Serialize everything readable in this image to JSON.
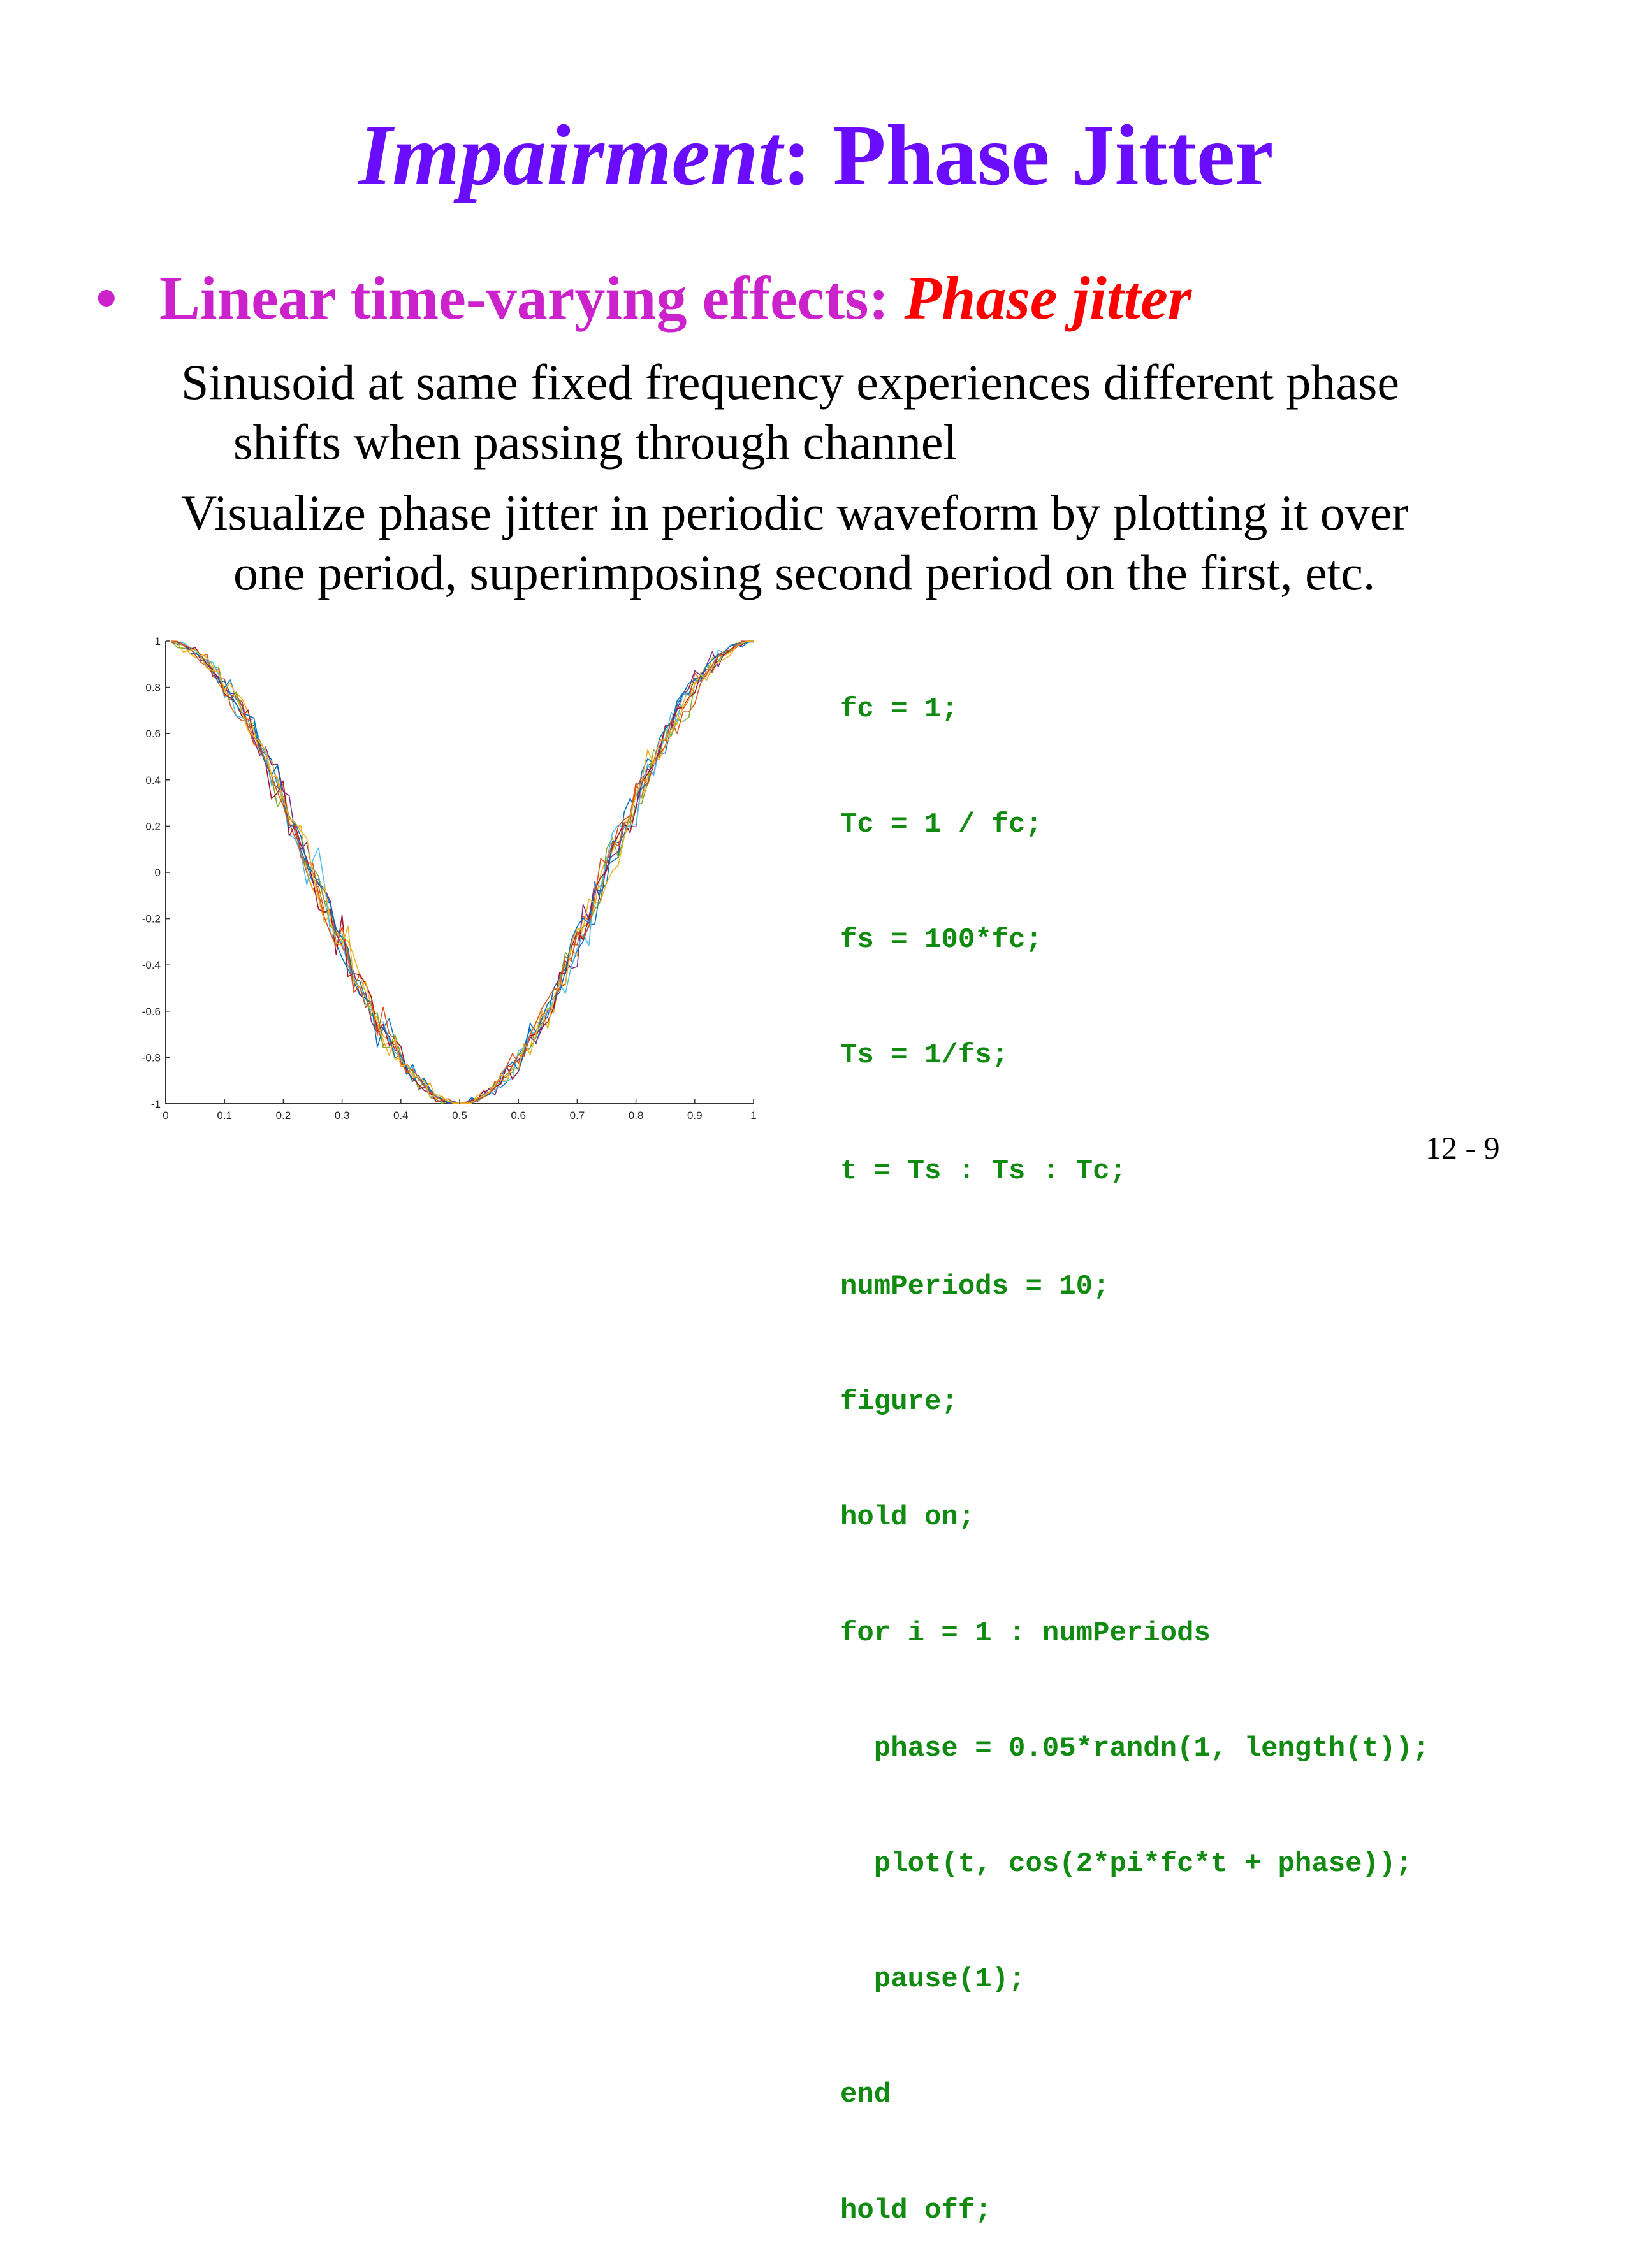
{
  "title": {
    "italic": "Impairment",
    "rest": ": Phase Jitter"
  },
  "bullet": {
    "symbol": "•",
    "text": "Linear time-varying effects: ",
    "emphasis": "Phase jitter"
  },
  "paragraphs": [
    {
      "line1": "Sinusoid at same fixed frequency experiences different phase",
      "line2": "shifts when passing through channel"
    },
    {
      "line1": "Visualize phase jitter in periodic waveform by plotting it over",
      "line2": "one period, superimposing second period on the first, etc."
    }
  ],
  "code": [
    "fc = 1;",
    "Tc = 1 / fc;",
    "fs = 100*fc;",
    "Ts = 1/fs;",
    "t = Ts : Ts : Tc;",
    "numPeriods = 10;",
    "figure;",
    "hold on;",
    "for i = 1 : numPeriods",
    "  phase = 0.05*randn(1, length(t));",
    "  plot(t, cos(2*pi*fc*t + phase));",
    "  pause(1);",
    "end",
    "hold off;"
  ],
  "page_number": "12 - 9",
  "chart_data": {
    "type": "line",
    "description_free": true,
    "xlim": [
      0,
      1
    ],
    "ylim": [
      -1,
      1
    ],
    "x_ticks": [
      "0",
      "0.1",
      "0.2",
      "0.3",
      "0.4",
      "0.5",
      "0.6",
      "0.7",
      "0.8",
      "0.9",
      "1"
    ],
    "y_ticks": [
      "1",
      "0.8",
      "0.6",
      "0.4",
      "0.2",
      "0",
      "-0.2",
      "-0.4",
      "-0.6",
      "-0.8",
      "-1"
    ],
    "function": "cos(2*pi*fc*t + phase)",
    "fc": 1,
    "t_start": 0.01,
    "t_step": 0.01,
    "t_end": 1,
    "num_series": 10,
    "phase_std": 0.05,
    "grid": false,
    "series_colors": [
      "#0072bd",
      "#d95319",
      "#edb120",
      "#7e2f8e",
      "#77ac30",
      "#4dbeee",
      "#a2142f",
      "#0072bd",
      "#d95319",
      "#edb120"
    ]
  }
}
